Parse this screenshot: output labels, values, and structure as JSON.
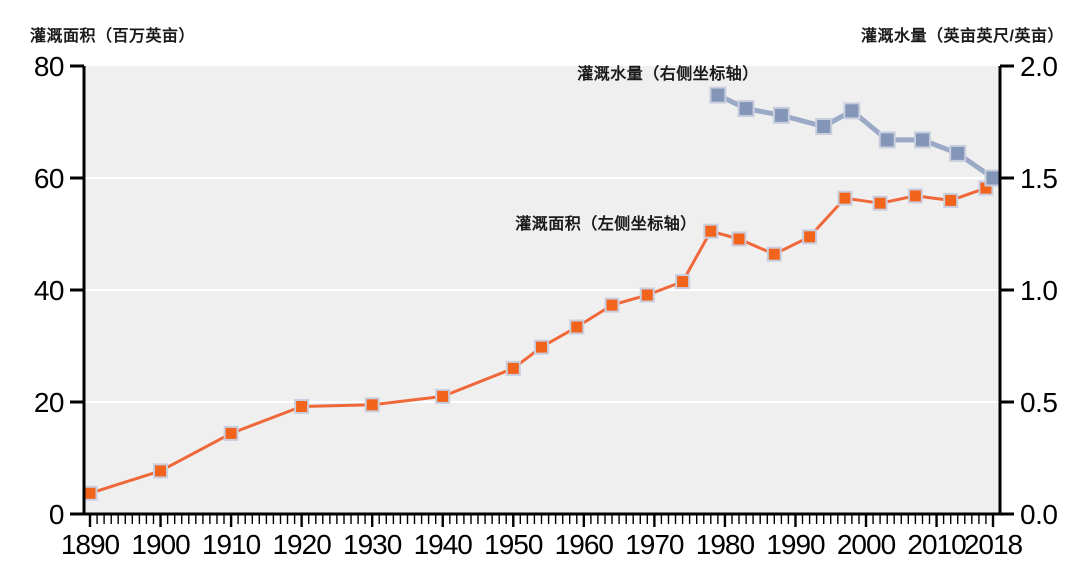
{
  "chart_data": {
    "type": "line",
    "title": "",
    "x_axis": {
      "range": [
        1890,
        2018
      ],
      "tick_labels": [
        "1890",
        "1900",
        "1910",
        "1920",
        "1930",
        "1940",
        "1950",
        "1960",
        "1970",
        "1980",
        "1990",
        "2000",
        "2010",
        "2018"
      ],
      "minor_tick_interval": 1
    },
    "left_y_axis": {
      "label": "灌溉面积（百万英亩）",
      "range": [
        0,
        80
      ],
      "ticks": [
        "0",
        "20",
        "40",
        "60",
        "80"
      ],
      "gridlines": [
        20,
        40,
        60
      ]
    },
    "right_y_axis": {
      "label": "灌溉水量（英亩英尺/英亩）",
      "range": [
        0,
        2
      ],
      "ticks": [
        "0.0",
        "0.5",
        "1.0",
        "1.5",
        "2.0"
      ]
    },
    "grid": "horizontal-white",
    "legend_position": "inline-annotations",
    "annotations": [
      {
        "id": "water",
        "text": "灌溉水量（右侧坐标轴）"
      },
      {
        "id": "area",
        "text": "灌溉面积（左侧坐标轴）"
      }
    ],
    "series": [
      {
        "name": "灌溉面积（左侧坐标轴）",
        "id": "area",
        "axis": "left",
        "x": [
          1890,
          1900,
          1910,
          1920,
          1930,
          1940,
          1950,
          1954,
          1959,
          1964,
          1969,
          1974,
          1978,
          1982,
          1987,
          1992,
          1997,
          2002,
          2007,
          2012,
          2017
        ],
        "values": [
          3.7,
          7.7,
          14.4,
          19.2,
          19.5,
          21.0,
          26.0,
          29.8,
          33.4,
          37.3,
          39.1,
          41.5,
          50.5,
          49.1,
          46.4,
          49.5,
          56.4,
          55.5,
          56.8,
          56.0,
          58.2
        ]
      },
      {
        "name": "灌溉水量（右侧坐标轴）",
        "id": "water",
        "axis": "right",
        "x": [
          1979,
          1983,
          1988,
          1994,
          1998,
          2003,
          2008,
          2013,
          2018
        ],
        "values": [
          1.87,
          1.81,
          1.78,
          1.73,
          1.8,
          1.67,
          1.67,
          1.61,
          1.5
        ]
      }
    ],
    "colors": {
      "area_line": "#f0683a",
      "area_marker": "#f2641c",
      "water_line": "#9aa9c6",
      "water_marker": "#8396b8",
      "marker_outline": "#c9cedf",
      "plot_bg": "#efefef",
      "gridline": "#ffffff",
      "axis": "#000000",
      "text": "#1a1a1a"
    }
  }
}
